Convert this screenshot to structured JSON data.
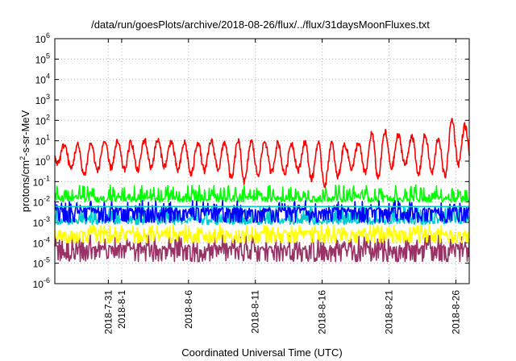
{
  "chart_data": {
    "type": "line",
    "title": "/data/run/goesPlots/archive/2018-08-26/flux/../flux/31daysMoonFluxes.txt",
    "xlabel": "Coordinated Universal Time (UTC)",
    "ylabel": {
      "base": "protons/cm",
      "sup": "2",
      "rest": "-s-sr-MeV"
    },
    "y_scale": "log",
    "ylim": [
      1e-06,
      1000000.0
    ],
    "y_ticks": [
      {
        "value": 1e-06,
        "base": "10",
        "exp": "-6"
      },
      {
        "value": 1e-05,
        "base": "10",
        "exp": "-5"
      },
      {
        "value": 0.0001,
        "base": "10",
        "exp": "-4"
      },
      {
        "value": 0.001,
        "base": "10",
        "exp": "-3"
      },
      {
        "value": 0.01,
        "base": "10",
        "exp": "-2"
      },
      {
        "value": 0.1,
        "base": "10",
        "exp": "-1"
      },
      {
        "value": 1,
        "base": "10",
        "exp": "0"
      },
      {
        "value": 10,
        "base": "10",
        "exp": "1"
      },
      {
        "value": 100,
        "base": "10",
        "exp": "2"
      },
      {
        "value": 1000,
        "base": "10",
        "exp": "3"
      },
      {
        "value": 10000,
        "base": "10",
        "exp": "4"
      },
      {
        "value": 100000,
        "base": "10",
        "exp": "5"
      },
      {
        "value": 1000000,
        "base": "10",
        "exp": "6"
      }
    ],
    "xlim": [
      "2018-07-27",
      "2018-08-27"
    ],
    "x_ticks": [
      {
        "date": "2018-07-31",
        "label": "2018-7-31"
      },
      {
        "date": "2018-08-01",
        "label": "2018-8-1"
      },
      {
        "date": "2018-08-06",
        "label": "2018-8-6"
      },
      {
        "date": "2018-08-11",
        "label": "2018-8-11"
      },
      {
        "date": "2018-08-16",
        "label": "2018-8-16"
      },
      {
        "date": "2018-08-21",
        "label": "2018-8-21"
      },
      {
        "date": "2018-08-26",
        "label": "2018-8-26"
      }
    ],
    "grid": true,
    "series": [
      {
        "color": "#ff0000",
        "x": [
          "07-27",
          "07-28",
          "07-29",
          "07-30",
          "07-31",
          "08-01",
          "08-02",
          "08-03",
          "08-04",
          "08-05",
          "08-06",
          "08-07",
          "08-08",
          "08-09",
          "08-10",
          "08-11",
          "08-12",
          "08-13",
          "08-14",
          "08-15",
          "08-16",
          "08-17",
          "08-18",
          "08-19",
          "08-20",
          "08-21",
          "08-22",
          "08-23",
          "08-24",
          "08-25",
          "08-26",
          "08-27"
        ],
        "peaks": [
          5,
          7,
          6,
          8,
          10,
          8,
          9,
          12,
          10,
          9,
          8,
          9,
          10,
          8,
          11,
          9,
          10,
          7,
          8,
          9,
          7,
          8,
          6,
          9,
          30,
          25,
          15,
          20,
          18,
          12,
          150,
          10
        ],
        "troughs": [
          0.9,
          0.5,
          0.2,
          0.3,
          0.5,
          0.4,
          0.3,
          0.5,
          0.6,
          0.4,
          0.2,
          0.3,
          0.5,
          0.15,
          0.08,
          0.2,
          0.3,
          0.2,
          0.4,
          0.15,
          0.06,
          0.1,
          0.5,
          0.3,
          0.1,
          0.4,
          0.8,
          0.2,
          0.3,
          0.1,
          0.6,
          1.2
        ]
      },
      {
        "color": "#00ff00",
        "band": [
          0.01,
          0.07
        ],
        "base": 0.015
      },
      {
        "color": "#00cccc",
        "band": [
          0.0008,
          0.006
        ],
        "base": 0.0012
      },
      {
        "color": "#0000ff",
        "band": [
          0.001,
          0.012
        ],
        "base": 0.004
      },
      {
        "color": "#ffff00",
        "band": [
          0.0001,
          0.0008
        ],
        "base": 0.0003
      },
      {
        "color": "#993366",
        "band": [
          1.2e-05,
          0.00025
        ],
        "base": 6e-05
      }
    ],
    "reference_levels": [
      {
        "color": "#00cccc",
        "value": 0.006
      }
    ]
  }
}
